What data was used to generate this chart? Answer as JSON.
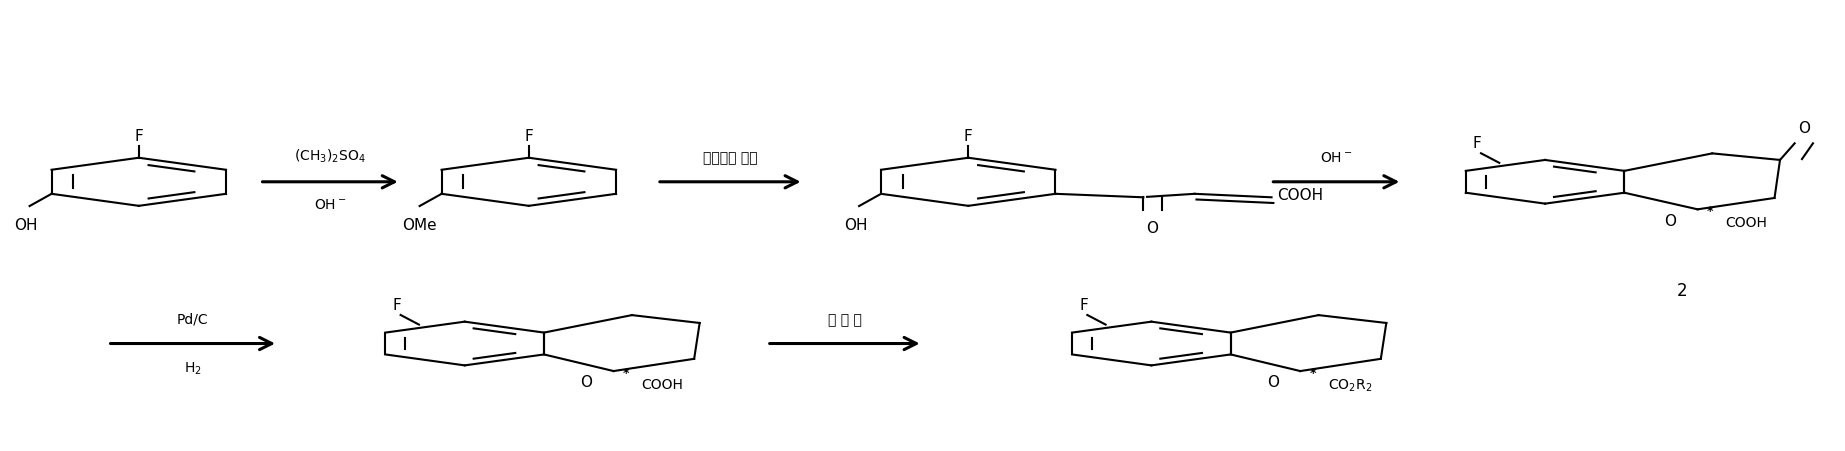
{
  "background_color": "#ffffff",
  "figsize": [
    18.45,
    4.51
  ],
  "dpi": 100,
  "text_fontsize": 11,
  "label_fontsize": 10,
  "line_width": 1.5,
  "arrow1_top": "(CH$_3$)$_2$SO$_4$",
  "arrow1_bot": "OH$^-$",
  "arrow2_top": "顺丁烯二 酸酐",
  "arrow3_top": "OH$^-$",
  "arrow4_top": "Pd/C",
  "arrow4_bot": "H$_2$",
  "arrow5_top": "催 化 剂",
  "label2": "2"
}
